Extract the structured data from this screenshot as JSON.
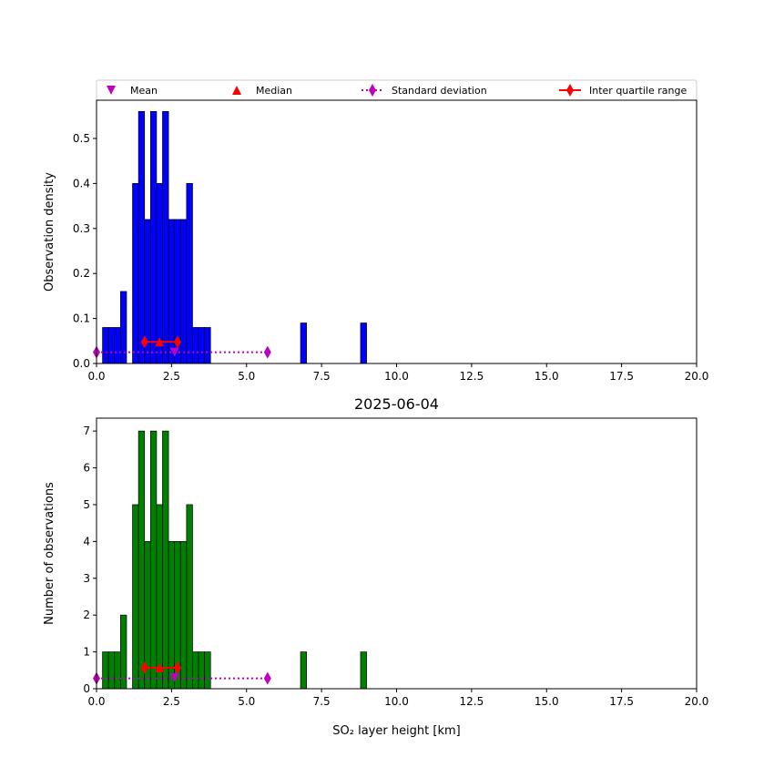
{
  "legend": {
    "placement": "top",
    "entries": [
      {
        "label": "Mean",
        "marker": "triangle-down",
        "color": "#bf00bf"
      },
      {
        "label": "Median",
        "marker": "triangle-up",
        "color": "#ff0000"
      },
      {
        "label": "Standard deviation",
        "marker": "diamond-dotted-line",
        "color": "#bf00bf"
      },
      {
        "label": "Inter quartile range",
        "marker": "diamond-solid-line",
        "color": "#ff0000"
      }
    ]
  },
  "chart_data": [
    {
      "type": "bar",
      "title": "",
      "xlabel": "",
      "ylabel": "Observation density",
      "xlim": [
        0,
        20
      ],
      "ylim": [
        0,
        0.585
      ],
      "xticks": [
        "0.0",
        "2.5",
        "5.0",
        "7.5",
        "10.0",
        "12.5",
        "15.0",
        "17.5",
        "20.0"
      ],
      "yticks": [
        "0.0",
        "0.1",
        "0.2",
        "0.3",
        "0.4",
        "0.5"
      ],
      "bar_color": "#0000ff",
      "bins": [
        {
          "x0": 0.2,
          "x1": 0.4,
          "value": 0.08
        },
        {
          "x0": 0.4,
          "x1": 0.6,
          "value": 0.08
        },
        {
          "x0": 0.6,
          "x1": 0.8,
          "value": 0.08
        },
        {
          "x0": 0.8,
          "x1": 1.0,
          "value": 0.16
        },
        {
          "x0": 1.2,
          "x1": 1.4,
          "value": 0.4
        },
        {
          "x0": 1.4,
          "x1": 1.6,
          "value": 0.56
        },
        {
          "x0": 1.6,
          "x1": 1.8,
          "value": 0.32
        },
        {
          "x0": 1.8,
          "x1": 2.0,
          "value": 0.56
        },
        {
          "x0": 2.0,
          "x1": 2.2,
          "value": 0.4
        },
        {
          "x0": 2.2,
          "x1": 2.4,
          "value": 0.56
        },
        {
          "x0": 2.4,
          "x1": 2.6,
          "value": 0.32
        },
        {
          "x0": 2.6,
          "x1": 2.8,
          "value": 0.32
        },
        {
          "x0": 2.8,
          "x1": 3.0,
          "value": 0.32
        },
        {
          "x0": 3.0,
          "x1": 3.2,
          "value": 0.4
        },
        {
          "x0": 3.2,
          "x1": 3.4,
          "value": 0.08
        },
        {
          "x0": 3.4,
          "x1": 3.6,
          "value": 0.08
        },
        {
          "x0": 3.6,
          "x1": 3.8,
          "value": 0.08
        },
        {
          "x0": 6.8,
          "x1": 7.0,
          "value": 0.09
        },
        {
          "x0": 8.8,
          "x1": 9.0,
          "value": 0.09
        }
      ],
      "stats": {
        "mean": {
          "x": 2.6,
          "y": 0.025
        },
        "median": {
          "x": 2.1,
          "y": 0.048
        },
        "iqr": {
          "x": [
            1.6,
            2.7
          ],
          "y": 0.048
        },
        "std": {
          "x": [
            0.0,
            5.7
          ],
          "y": 0.025
        }
      }
    },
    {
      "type": "bar",
      "title": "2025-06-04",
      "xlabel": "SO₂ layer height [km]",
      "ylabel": "Number of observations",
      "xlim": [
        0,
        20
      ],
      "ylim": [
        0,
        7.35
      ],
      "xticks": [
        "0.0",
        "2.5",
        "5.0",
        "7.5",
        "10.0",
        "12.5",
        "15.0",
        "17.5",
        "20.0"
      ],
      "yticks": [
        "0",
        "1",
        "2",
        "3",
        "4",
        "5",
        "6",
        "7"
      ],
      "bar_color": "#008000",
      "bins": [
        {
          "x0": 0.2,
          "x1": 0.4,
          "value": 1
        },
        {
          "x0": 0.4,
          "x1": 0.6,
          "value": 1
        },
        {
          "x0": 0.6,
          "x1": 0.8,
          "value": 1
        },
        {
          "x0": 0.8,
          "x1": 1.0,
          "value": 2
        },
        {
          "x0": 1.2,
          "x1": 1.4,
          "value": 5
        },
        {
          "x0": 1.4,
          "x1": 1.6,
          "value": 7
        },
        {
          "x0": 1.6,
          "x1": 1.8,
          "value": 4
        },
        {
          "x0": 1.8,
          "x1": 2.0,
          "value": 7
        },
        {
          "x0": 2.0,
          "x1": 2.2,
          "value": 5
        },
        {
          "x0": 2.2,
          "x1": 2.4,
          "value": 7
        },
        {
          "x0": 2.4,
          "x1": 2.6,
          "value": 4
        },
        {
          "x0": 2.6,
          "x1": 2.8,
          "value": 4
        },
        {
          "x0": 2.8,
          "x1": 3.0,
          "value": 4
        },
        {
          "x0": 3.0,
          "x1": 3.2,
          "value": 5
        },
        {
          "x0": 3.2,
          "x1": 3.4,
          "value": 1
        },
        {
          "x0": 3.4,
          "x1": 3.6,
          "value": 1
        },
        {
          "x0": 3.6,
          "x1": 3.8,
          "value": 1
        },
        {
          "x0": 6.8,
          "x1": 7.0,
          "value": 1
        },
        {
          "x0": 8.8,
          "x1": 9.0,
          "value": 1
        }
      ],
      "stats": {
        "mean": {
          "x": 2.6,
          "y": 0.3
        },
        "median": {
          "x": 2.1,
          "y": 0.57
        },
        "iqr": {
          "x": [
            1.6,
            2.7
          ],
          "y": 0.57
        },
        "std": {
          "x": [
            0.0,
            5.7
          ],
          "y": 0.28
        }
      }
    }
  ]
}
